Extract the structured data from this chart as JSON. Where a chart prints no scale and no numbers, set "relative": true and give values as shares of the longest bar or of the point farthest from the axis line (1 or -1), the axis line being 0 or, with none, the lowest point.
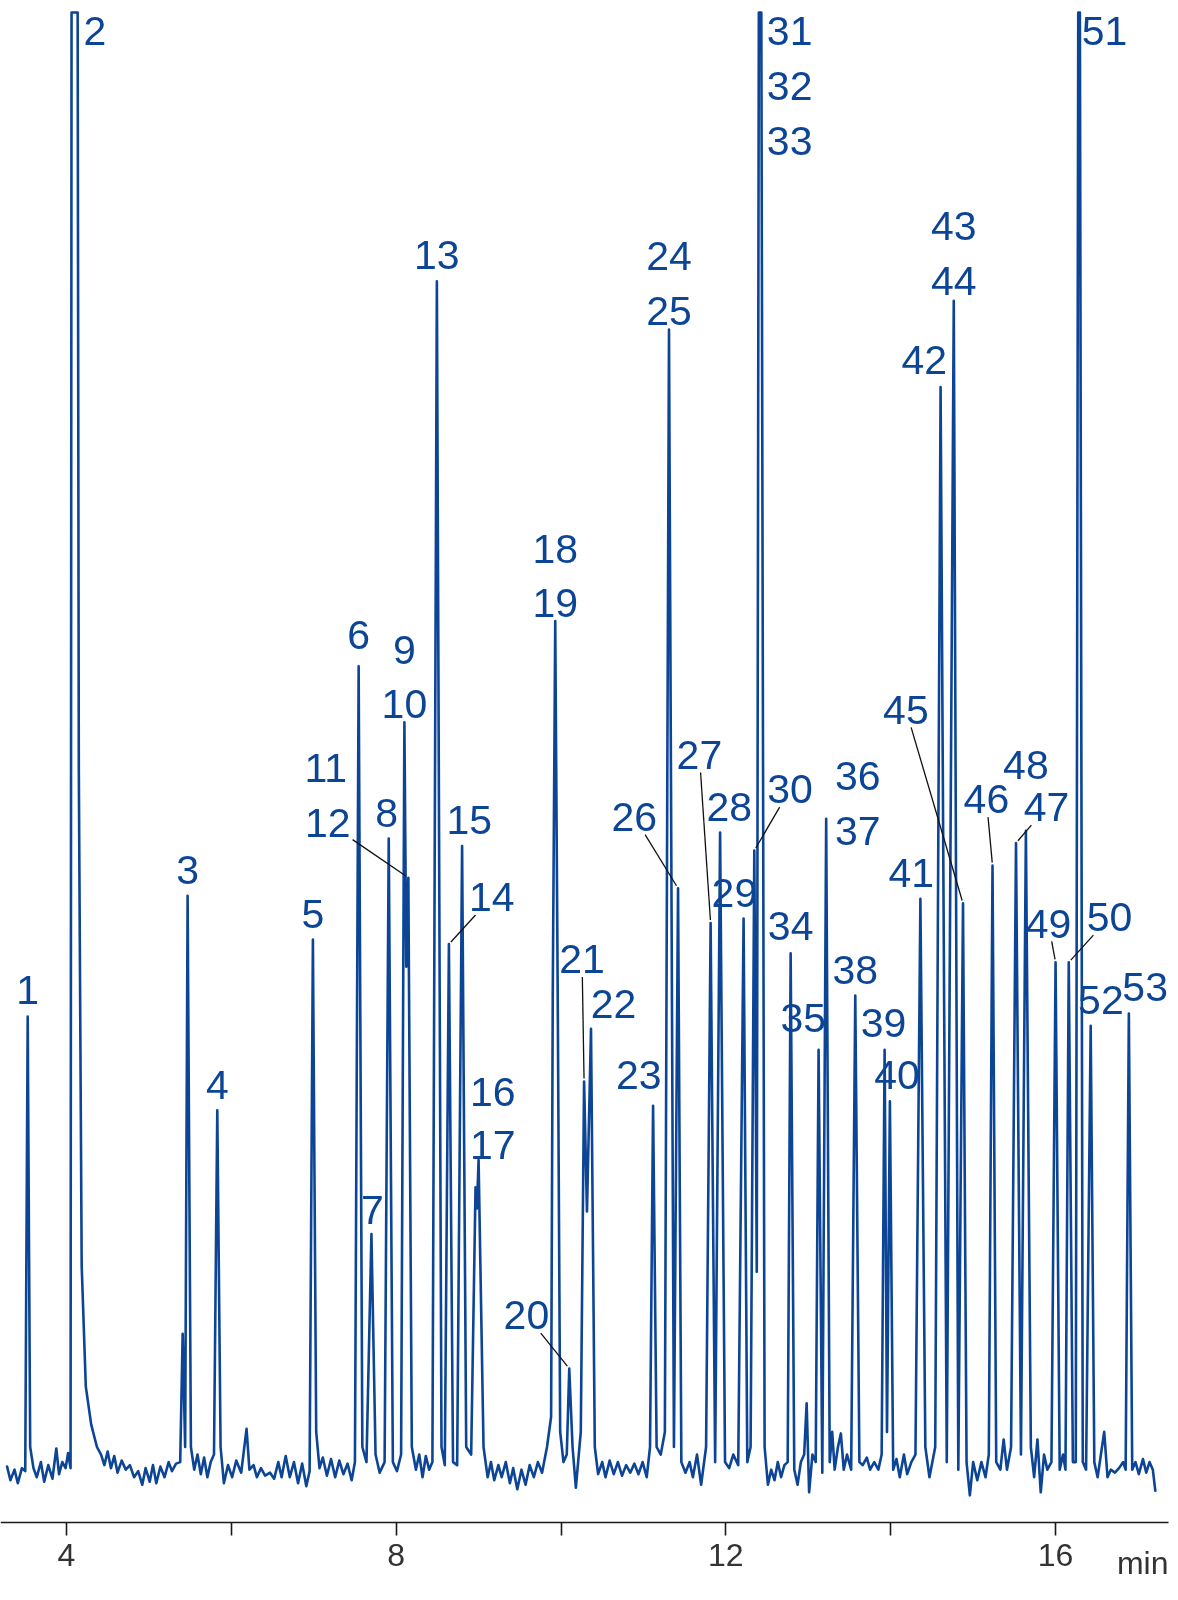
{
  "chart_data": {
    "type": "line",
    "relative": true,
    "xlabel": "min",
    "xlim": [
      3.2,
      17.37
    ],
    "xticks": [
      4,
      {
        "value": 6,
        "label": null
      },
      8,
      {
        "value": 10,
        "label": null
      },
      12,
      {
        "value": 14,
        "label": null
      },
      16
    ],
    "color": "#0d4596",
    "x": [
      3.28,
      3.32,
      3.37,
      3.41,
      3.46,
      3.5,
      3.53,
      3.56,
      3.6,
      3.64,
      3.69,
      3.73,
      3.78,
      3.83,
      3.877,
      3.91,
      3.95,
      3.99,
      4.02,
      4.05,
      4.062,
      4.136,
      4.15,
      4.185,
      4.235,
      4.3,
      4.37,
      4.42,
      4.46,
      4.5,
      4.54,
      4.58,
      4.62,
      4.67,
      4.72,
      4.77,
      4.82,
      4.87,
      4.92,
      4.96,
      5.01,
      5.05,
      5.09,
      5.14,
      5.19,
      5.24,
      5.28,
      5.33,
      5.38,
      5.41,
      5.44,
      5.47,
      5.51,
      5.55,
      5.59,
      5.63,
      5.67,
      5.71,
      5.75,
      5.79,
      5.83,
      5.87,
      5.91,
      5.96,
      6.01,
      6.06,
      6.12,
      6.185,
      6.22,
      6.27,
      6.31,
      6.36,
      6.41,
      6.47,
      6.52,
      6.57,
      6.61,
      6.66,
      6.71,
      6.76,
      6.81,
      6.86,
      6.91,
      6.95,
      6.99,
      7.03,
      7.07,
      7.11,
      7.16,
      7.21,
      7.26,
      7.31,
      7.36,
      7.41,
      7.46,
      7.5,
      7.545,
      7.59,
      7.64,
      7.7,
      7.75,
      7.8,
      7.86,
      7.91,
      7.96,
      8.01,
      8.06,
      8.1,
      8.123,
      8.148,
      8.19,
      8.24,
      8.28,
      8.32,
      8.36,
      8.4,
      8.44,
      8.494,
      8.55,
      8.59,
      8.64,
      8.69,
      8.74,
      8.8,
      8.85,
      8.91,
      8.963,
      8.98,
      9.0,
      9.06,
      9.11,
      9.15,
      9.19,
      9.24,
      9.28,
      9.33,
      9.38,
      9.42,
      9.47,
      9.52,
      9.57,
      9.62,
      9.67,
      9.72,
      9.77,
      9.83,
      9.88,
      9.9,
      9.93,
      9.96,
      9.99,
      10.03,
      10.07,
      10.1,
      10.14,
      10.18,
      10.24,
      10.28,
      10.315,
      10.364,
      10.41,
      10.45,
      10.5,
      10.54,
      10.59,
      10.64,
      10.69,
      10.74,
      10.79,
      10.84,
      10.89,
      10.94,
      10.99,
      11.04,
      11.08,
      11.117,
      11.16,
      11.21,
      11.26,
      11.31,
      11.37,
      11.42,
      11.46,
      11.51,
      11.56,
      11.6,
      11.65,
      11.7,
      11.76,
      11.815,
      11.87,
      11.93,
      11.99,
      12.04,
      12.09,
      12.15,
      12.215,
      12.26,
      12.3,
      12.345,
      12.375,
      12.4,
      12.43,
      12.47,
      12.51,
      12.55,
      12.59,
      12.63,
      12.67,
      12.71,
      12.75,
      12.786,
      12.83,
      12.87,
      12.91,
      12.95,
      12.98,
      13.01,
      13.05,
      13.09,
      13.125,
      13.17,
      13.217,
      13.26,
      13.29,
      13.32,
      13.36,
      13.395,
      13.43,
      13.47,
      13.52,
      13.57,
      13.62,
      13.66,
      13.71,
      13.75,
      13.8,
      13.85,
      13.89,
      13.926,
      13.955,
      13.99,
      14.03,
      14.07,
      14.11,
      14.16,
      14.2,
      14.25,
      14.3,
      14.36,
      14.42,
      14.47,
      14.54,
      14.605,
      14.68,
      14.765,
      14.82,
      14.877,
      14.92,
      14.96,
      15.0,
      15.05,
      15.1,
      15.15,
      15.19,
      15.235,
      15.28,
      15.33,
      15.37,
      15.41,
      15.46,
      15.52,
      15.58,
      15.64,
      15.7,
      15.74,
      15.78,
      15.82,
      15.86,
      15.9,
      15.95,
      16.0,
      16.05,
      16.09,
      16.12,
      16.16,
      16.21,
      16.245,
      16.275,
      16.295,
      16.33,
      16.37,
      16.426,
      16.47,
      16.51,
      16.55,
      16.59,
      16.63,
      16.67,
      16.72,
      16.77,
      16.82,
      16.85,
      16.889,
      16.93,
      16.97,
      17.01,
      17.06,
      17.1,
      17.14,
      17.18,
      17.21
    ],
    "values": [
      0.037,
      0.028,
      0.035,
      0.026,
      0.036,
      0.034,
      0.335,
      0.05,
      0.036,
      0.03,
      0.04,
      0.027,
      0.038,
      0.029,
      0.049,
      0.032,
      0.04,
      0.036,
      0.046,
      0.036,
      1.0,
      1.0,
      0.5,
      0.17,
      0.09,
      0.065,
      0.05,
      0.045,
      0.038,
      0.047,
      0.036,
      0.044,
      0.033,
      0.041,
      0.035,
      0.038,
      0.03,
      0.034,
      0.025,
      0.036,
      0.027,
      0.038,
      0.026,
      0.037,
      0.03,
      0.04,
      0.034,
      0.039,
      0.04,
      0.125,
      0.05,
      0.415,
      0.05,
      0.035,
      0.045,
      0.032,
      0.043,
      0.03,
      0.04,
      0.045,
      0.273,
      0.05,
      0.026,
      0.038,
      0.03,
      0.041,
      0.033,
      0.062,
      0.035,
      0.038,
      0.03,
      0.036,
      0.031,
      0.033,
      0.029,
      0.04,
      0.03,
      0.044,
      0.03,
      0.04,
      0.026,
      0.039,
      0.024,
      0.034,
      0.386,
      0.06,
      0.036,
      0.043,
      0.031,
      0.042,
      0.03,
      0.041,
      0.032,
      0.039,
      0.028,
      0.04,
      0.567,
      0.05,
      0.04,
      0.191,
      0.045,
      0.033,
      0.04,
      0.453,
      0.04,
      0.034,
      0.045,
      0.53,
      0.368,
      0.427,
      0.05,
      0.035,
      0.045,
      0.03,
      0.044,
      0.035,
      0.04,
      0.822,
      0.05,
      0.038,
      0.383,
      0.04,
      0.038,
      0.448,
      0.05,
      0.045,
      0.222,
      0.208,
      0.24,
      0.05,
      0.03,
      0.04,
      0.028,
      0.038,
      0.03,
      0.04,
      0.026,
      0.036,
      0.022,
      0.035,
      0.025,
      0.038,
      0.03,
      0.04,
      0.033,
      0.05,
      0.07,
      0.35,
      0.597,
      0.35,
      0.06,
      0.04,
      0.045,
      0.102,
      0.05,
      0.023,
      0.06,
      0.292,
      0.206,
      0.327,
      0.05,
      0.032,
      0.04,
      0.03,
      0.041,
      0.032,
      0.04,
      0.031,
      0.038,
      0.033,
      0.039,
      0.032,
      0.04,
      0.03,
      0.05,
      0.276,
      0.05,
      0.045,
      0.06,
      0.79,
      0.05,
      0.42,
      0.04,
      0.033,
      0.04,
      0.03,
      0.045,
      0.025,
      0.05,
      0.397,
      0.04,
      0.457,
      0.04,
      0.036,
      0.045,
      0.038,
      0.4,
      0.04,
      0.05,
      0.445,
      0.166,
      1.0,
      1.0,
      0.05,
      0.025,
      0.035,
      0.028,
      0.04,
      0.03,
      0.038,
      0.04,
      0.377,
      0.035,
      0.025,
      0.04,
      0.045,
      0.079,
      0.02,
      0.045,
      0.04,
      0.313,
      0.033,
      0.466,
      0.04,
      0.06,
      0.035,
      0.05,
      0.059,
      0.035,
      0.045,
      0.035,
      0.349,
      0.04,
      0.038,
      0.043,
      0.035,
      0.04,
      0.035,
      0.045,
      0.313,
      0.06,
      0.279,
      0.035,
      0.042,
      0.03,
      0.045,
      0.032,
      0.04,
      0.045,
      0.413,
      0.05,
      0.03,
      0.05,
      0.752,
      0.04,
      0.809,
      0.035,
      0.41,
      0.04,
      0.018,
      0.04,
      0.028,
      0.04,
      0.03,
      0.045,
      0.435,
      0.04,
      0.035,
      0.055,
      0.035,
      0.05,
      0.45,
      0.045,
      0.458,
      0.05,
      0.03,
      0.055,
      0.02,
      0.045,
      0.035,
      0.04,
      0.371,
      0.035,
      0.045,
      0.035,
      0.371,
      0.04,
      0.04,
      1.0,
      1.0,
      0.04,
      0.035,
      0.329,
      0.04,
      0.03,
      0.045,
      0.06,
      0.03,
      0.035,
      0.033,
      0.036,
      0.04,
      0.035,
      0.337,
      0.035,
      0.04,
      0.032,
      0.042,
      0.033,
      0.04,
      0.035,
      0.021
    ],
    "annotations": [
      {
        "text": "1",
        "x": 3.53,
        "y": 0.335
      },
      {
        "text": "2",
        "x": 4.099,
        "y": 1.0
      },
      {
        "text": "3",
        "x": 5.47,
        "y": 0.415
      },
      {
        "text": "4",
        "x": 5.83,
        "y": 0.273
      },
      {
        "text": "5",
        "x": 6.99,
        "y": 0.386
      },
      {
        "text": "6",
        "x": 7.545,
        "y": 0.567
      },
      {
        "text": "7",
        "x": 7.7,
        "y": 0.191
      },
      {
        "text": "8",
        "x": 7.91,
        "y": 0.453
      },
      {
        "text": "9",
        "x": 8.1,
        "y": 0.53
      },
      {
        "text": "10",
        "x": 8.1,
        "y": 0.53
      },
      {
        "text": "11",
        "x": 8.148,
        "y": 0.427
      },
      {
        "text": "12",
        "x": 8.148,
        "y": 0.427
      },
      {
        "text": "13",
        "x": 8.494,
        "y": 0.822
      },
      {
        "text": "14",
        "x": 8.64,
        "y": 0.383
      },
      {
        "text": "15",
        "x": 8.8,
        "y": 0.448
      },
      {
        "text": "16",
        "x": 8.963,
        "y": 0.222
      },
      {
        "text": "17",
        "x": 9.0,
        "y": 0.24
      },
      {
        "text": "18",
        "x": 9.93,
        "y": 0.597
      },
      {
        "text": "19",
        "x": 9.93,
        "y": 0.597
      },
      {
        "text": "20",
        "x": 10.1,
        "y": 0.102
      },
      {
        "text": "21",
        "x": 10.28,
        "y": 0.292
      },
      {
        "text": "22",
        "x": 10.364,
        "y": 0.327
      },
      {
        "text": "23",
        "x": 11.117,
        "y": 0.276
      },
      {
        "text": "24",
        "x": 11.31,
        "y": 0.79
      },
      {
        "text": "25",
        "x": 11.31,
        "y": 0.79
      },
      {
        "text": "26",
        "x": 11.42,
        "y": 0.42
      },
      {
        "text": "27",
        "x": 11.815,
        "y": 0.397
      },
      {
        "text": "28",
        "x": 11.93,
        "y": 0.457
      },
      {
        "text": "29",
        "x": 12.215,
        "y": 0.4
      },
      {
        "text": "30",
        "x": 12.345,
        "y": 0.445
      },
      {
        "text": "31",
        "x": 12.415,
        "y": 1.0
      },
      {
        "text": "32",
        "x": 12.415,
        "y": 1.0
      },
      {
        "text": "33",
        "x": 12.415,
        "y": 1.0
      },
      {
        "text": "34",
        "x": 12.786,
        "y": 0.377
      },
      {
        "text": "35",
        "x": 13.125,
        "y": 0.313
      },
      {
        "text": "36",
        "x": 13.217,
        "y": 0.466
      },
      {
        "text": "37",
        "x": 13.217,
        "y": 0.466
      },
      {
        "text": "38",
        "x": 13.57,
        "y": 0.349
      },
      {
        "text": "39",
        "x": 13.926,
        "y": 0.313
      },
      {
        "text": "40",
        "x": 13.99,
        "y": 0.279
      },
      {
        "text": "41",
        "x": 14.36,
        "y": 0.413
      },
      {
        "text": "42",
        "x": 14.605,
        "y": 0.752
      },
      {
        "text": "43",
        "x": 14.765,
        "y": 0.809
      },
      {
        "text": "44",
        "x": 14.765,
        "y": 0.809
      },
      {
        "text": "45",
        "x": 14.877,
        "y": 0.41
      },
      {
        "text": "46",
        "x": 15.235,
        "y": 0.435
      },
      {
        "text": "47",
        "x": 15.52,
        "y": 0.45
      },
      {
        "text": "48",
        "x": 15.64,
        "y": 0.458
      },
      {
        "text": "49",
        "x": 16.0,
        "y": 0.371
      },
      {
        "text": "50",
        "x": 16.16,
        "y": 0.371
      },
      {
        "text": "51",
        "x": 16.285,
        "y": 1.0
      },
      {
        "text": "52",
        "x": 16.426,
        "y": 0.329
      },
      {
        "text": "53",
        "x": 16.889,
        "y": 0.337
      }
    ]
  }
}
